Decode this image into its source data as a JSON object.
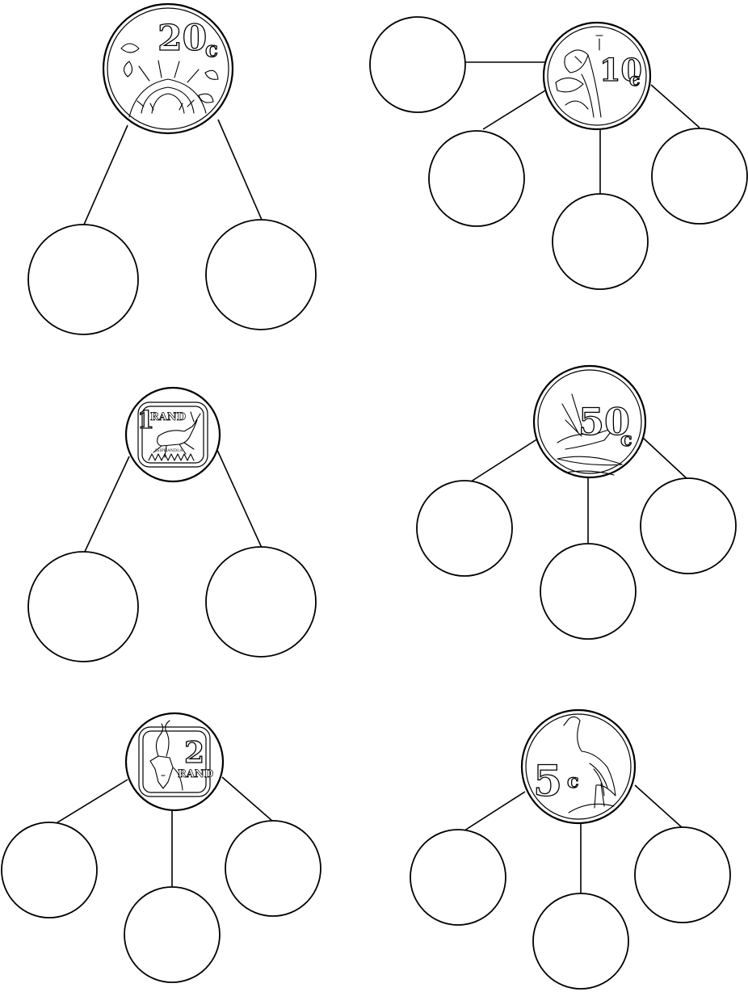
{
  "worksheet": {
    "coins": [
      {
        "id": "coin-20c",
        "parts": 2,
        "label_value": "20",
        "label_unit": "c",
        "motif": "protea flower"
      },
      {
        "id": "coin-10c",
        "parts": 4,
        "label_value": "10",
        "label_unit": "c",
        "motif": "arum lily"
      },
      {
        "id": "coin-1rand",
        "parts": 2,
        "label_value": "1",
        "label_unit": "RAND",
        "label_extra": "ISIPHANDLA",
        "motif": "springbok"
      },
      {
        "id": "coin-50c",
        "parts": 3,
        "label_value": "50",
        "label_unit": "c",
        "motif": "strelitzia"
      },
      {
        "id": "coin-2rand",
        "parts": 3,
        "label_value": "2",
        "label_unit": "RAND",
        "motif": "kudu"
      },
      {
        "id": "coin-5c",
        "parts": 3,
        "label_value": "5",
        "label_unit": "c",
        "motif": "blue crane"
      }
    ]
  }
}
